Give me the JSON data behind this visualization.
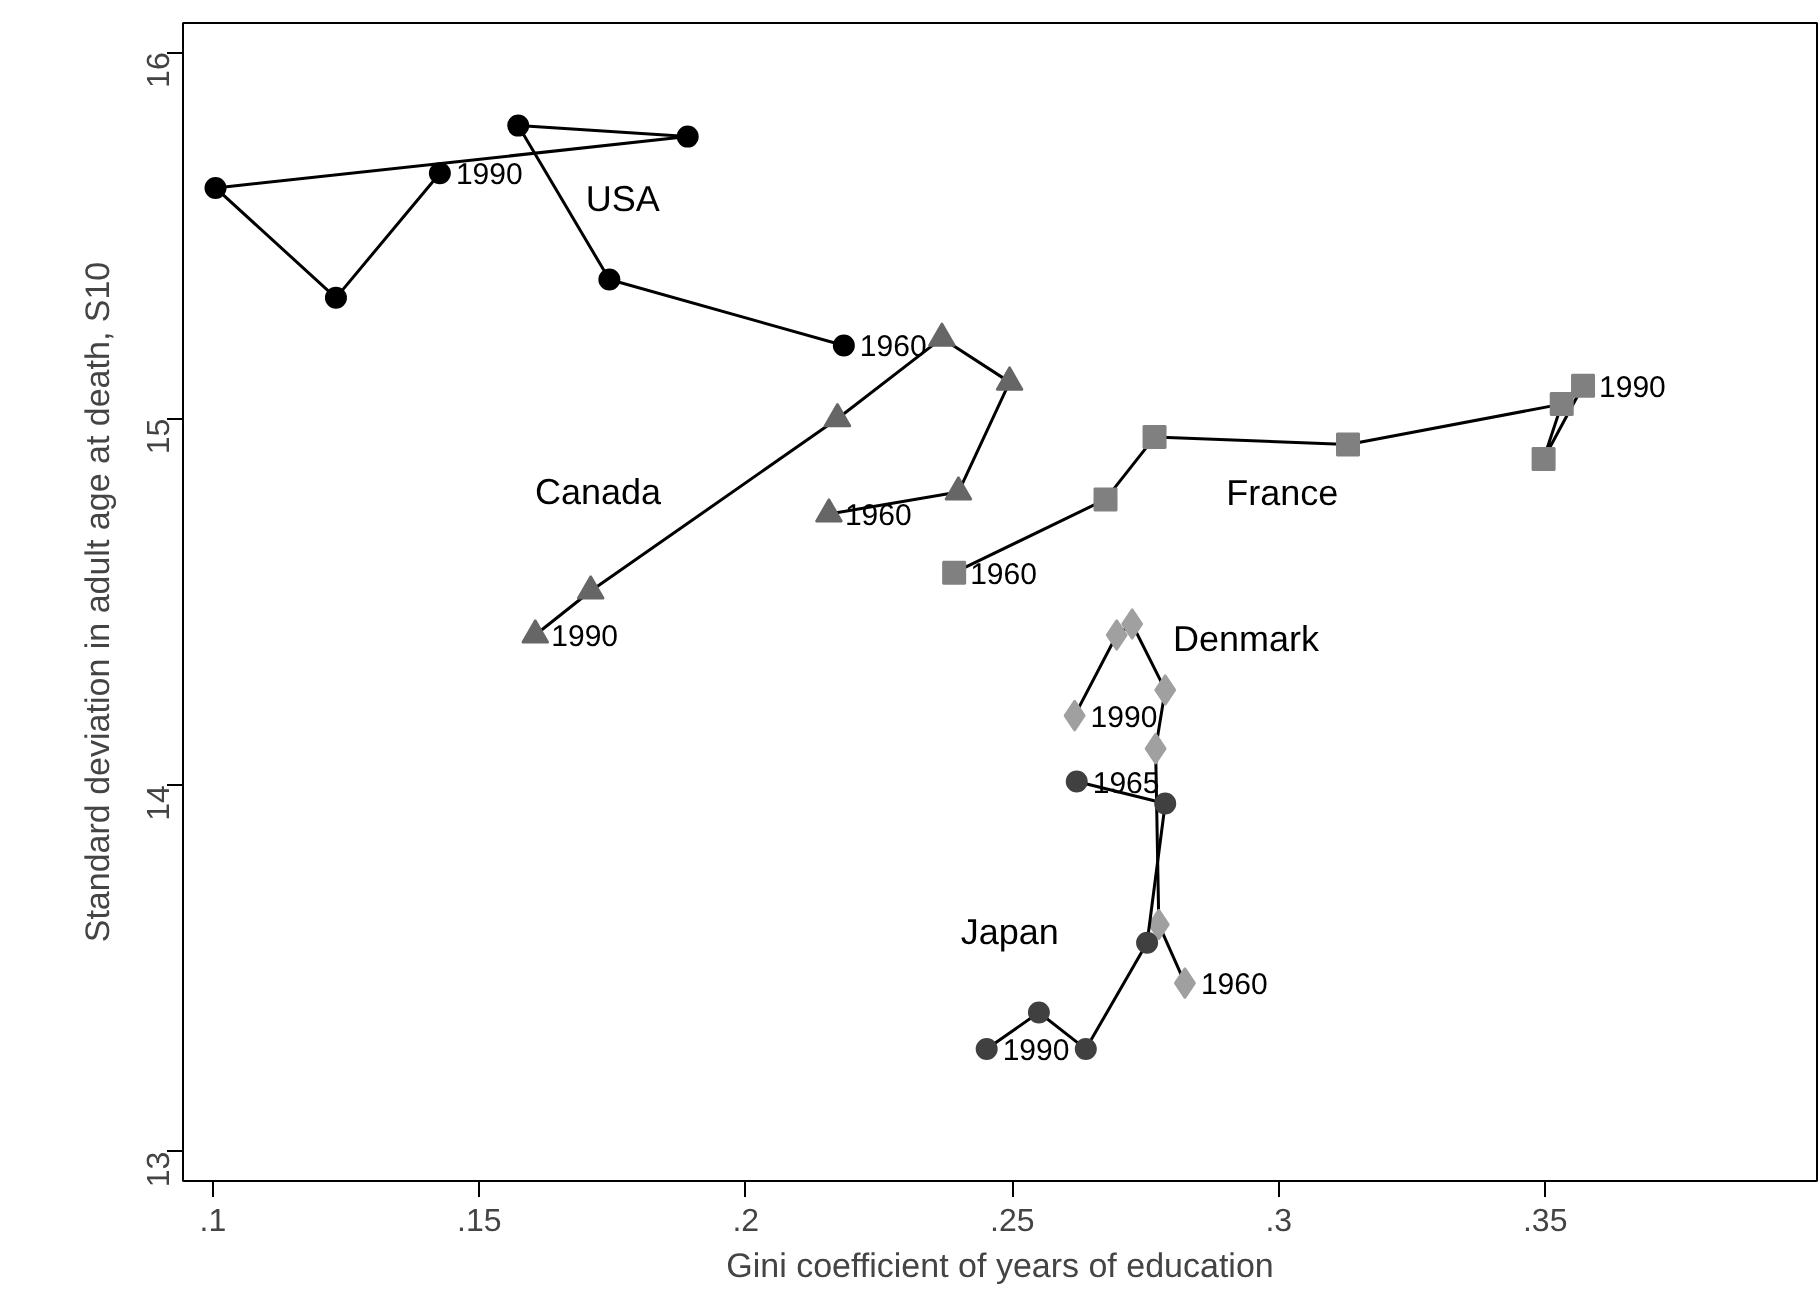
{
  "chart_data": {
    "type": "line",
    "xlabel": "Gini coefficient of years of education",
    "ylabel": "Standard deviation in adult age at death, S10",
    "xlim": [
      0.0944,
      0.401
    ],
    "ylim": [
      12.92,
      16.08
    ],
    "xticks": [
      {
        "value": 0.1,
        "label": ".1"
      },
      {
        "value": 0.15,
        "label": ".15"
      },
      {
        "value": 0.2,
        "label": ".2"
      },
      {
        "value": 0.25,
        "label": ".25"
      },
      {
        "value": 0.3,
        "label": ".3"
      },
      {
        "value": 0.35,
        "label": ".35"
      }
    ],
    "yticks": [
      13,
      14,
      15,
      16
    ],
    "grid": false,
    "series": [
      {
        "name": "USA",
        "color": "#000000",
        "marker": "circle",
        "x": [
          0.2184,
          0.1744,
          0.1573,
          0.1891,
          0.1005,
          0.1231,
          0.1426
        ],
        "values": [
          15.2,
          15.38,
          15.8,
          15.77,
          15.63,
          15.33,
          15.67
        ]
      },
      {
        "name": "Canada",
        "color": "#666666",
        "marker": "triangle",
        "x": [
          0.2156,
          0.2399,
          0.2495,
          0.2368,
          0.2172,
          0.1709,
          0.1605
        ],
        "values": [
          14.74,
          14.8,
          15.1,
          15.22,
          15.0,
          14.53,
          14.41
        ]
      },
      {
        "name": "France",
        "color": "#808080",
        "marker": "square",
        "x": [
          0.2391,
          0.2675,
          0.2767,
          0.313,
          0.3531,
          0.3497,
          0.3571
        ],
        "values": [
          14.58,
          14.78,
          14.95,
          14.93,
          15.04,
          14.89,
          15.09
        ]
      },
      {
        "name": "Denmark",
        "color": "#a0a0a0",
        "marker": "diamond",
        "x": [
          0.2824,
          0.2775,
          0.2769,
          0.2787,
          0.2725,
          0.2696,
          0.2617
        ],
        "values": [
          13.46,
          13.62,
          14.1,
          14.26,
          14.44,
          14.41,
          14.19
        ]
      },
      {
        "name": "Japan",
        "color": "#404040",
        "marker": "circle",
        "x": [
          0.2621,
          0.2787,
          0.2753,
          0.2638,
          0.255,
          0.2452
        ],
        "values": [
          14.01,
          13.95,
          13.57,
          13.28,
          13.38,
          13.28
        ]
      }
    ],
    "annotations": [
      {
        "text": "1960",
        "x": 0.2184,
        "y": 15.2
      },
      {
        "text": "1990",
        "x": 0.1426,
        "y": 15.67
      },
      {
        "text": "1960",
        "x": 0.2156,
        "y": 14.74
      },
      {
        "text": "1990",
        "x": 0.1605,
        "y": 14.41
      },
      {
        "text": "1960",
        "x": 0.2391,
        "y": 14.58
      },
      {
        "text": "1990",
        "x": 0.3571,
        "y": 15.09
      },
      {
        "text": "1990",
        "x": 0.2617,
        "y": 14.19
      },
      {
        "text": "1960",
        "x": 0.2824,
        "y": 13.46
      },
      {
        "text": "1965",
        "x": 0.2621,
        "y": 14.01
      },
      {
        "text": "1990",
        "x": 0.2452,
        "y": 13.28
      }
    ]
  }
}
